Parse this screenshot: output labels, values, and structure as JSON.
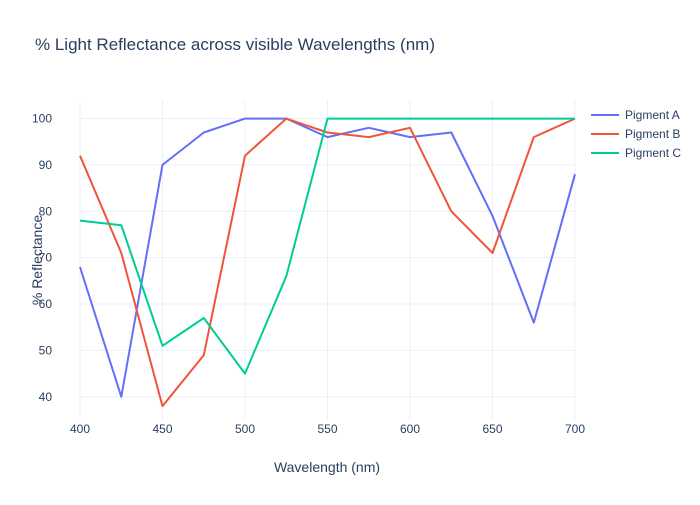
{
  "chart_data": {
    "type": "line",
    "title": "% Light Reflectance across visible Wavelengths (nm)",
    "xlabel": "Wavelength (nm)",
    "ylabel": "% Reflectance",
    "xlim": [
      400,
      700
    ],
    "ylim": [
      35,
      104
    ],
    "x_ticks": [
      400,
      450,
      500,
      550,
      600,
      650,
      700
    ],
    "y_ticks": [
      40,
      50,
      60,
      70,
      80,
      90,
      100
    ],
    "grid": true,
    "legend_position": "right",
    "series": [
      {
        "name": "Pigment A",
        "color": "#636efa",
        "points": [
          [
            400,
            68
          ],
          [
            425,
            40
          ],
          [
            450,
            90
          ],
          [
            475,
            97
          ],
          [
            500,
            100
          ],
          [
            525,
            100
          ],
          [
            550,
            96
          ],
          [
            575,
            98
          ],
          [
            600,
            96
          ],
          [
            625,
            97
          ],
          [
            650,
            79
          ],
          [
            675,
            56
          ],
          [
            700,
            88
          ]
        ]
      },
      {
        "name": "Pigment B",
        "color": "#ef553b",
        "points": [
          [
            400,
            92
          ],
          [
            425,
            71
          ],
          [
            450,
            38
          ],
          [
            475,
            49
          ],
          [
            500,
            92
          ],
          [
            525,
            100
          ],
          [
            550,
            97
          ],
          [
            575,
            96
          ],
          [
            600,
            98
          ],
          [
            625,
            80
          ],
          [
            650,
            71
          ],
          [
            675,
            96
          ],
          [
            700,
            100
          ]
        ]
      },
      {
        "name": "Pigment C",
        "color": "#00cc96",
        "points": [
          [
            400,
            78
          ],
          [
            425,
            77
          ],
          [
            450,
            51
          ],
          [
            475,
            57
          ],
          [
            500,
            45
          ],
          [
            525,
            66
          ],
          [
            550,
            100
          ],
          [
            575,
            100
          ],
          [
            600,
            100
          ],
          [
            625,
            100
          ],
          [
            650,
            100
          ],
          [
            675,
            100
          ],
          [
            700,
            100
          ]
        ]
      }
    ]
  }
}
